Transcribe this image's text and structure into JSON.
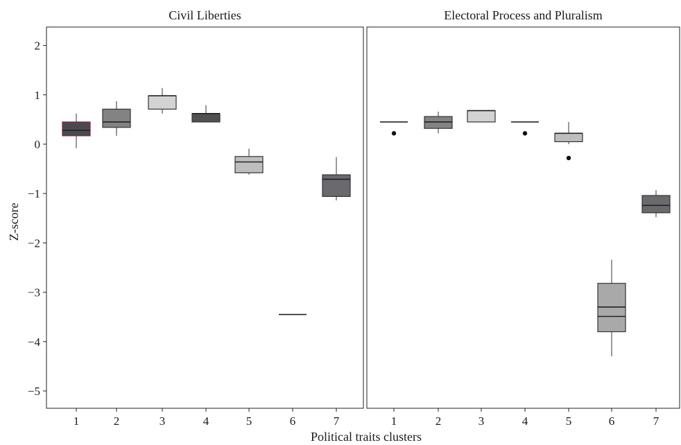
{
  "chart_data": {
    "type": "boxplot",
    "x_axis_title": "Political traits clusters",
    "y_axis_title": "Z-score",
    "x_categories": [
      "1",
      "2",
      "3",
      "4",
      "5",
      "6",
      "7"
    ],
    "y_ticks": [
      2,
      1,
      0,
      -1,
      -2,
      -3,
      -4,
      -5
    ],
    "y_tick_labels": [
      "2",
      "1",
      "0",
      "−1",
      "−2",
      "−3",
      "−4",
      "−5"
    ],
    "ylim": [
      -5.3,
      2.4
    ],
    "grid": false,
    "panels": [
      {
        "title": "Civil Liberties",
        "boxes": [
          {
            "cluster": "1",
            "min": -0.08,
            "q1": 0.17,
            "median": 0.28,
            "q3": 0.45,
            "max": 0.62,
            "outliers": [],
            "color": "#4a4a4e",
            "border": "#8b1c4b"
          },
          {
            "cluster": "2",
            "min": 0.17,
            "q1": 0.34,
            "median": 0.45,
            "q3": 0.71,
            "max": 0.87,
            "outliers": [],
            "color": "#838383",
            "border": "#333333"
          },
          {
            "cluster": "3",
            "min": 0.62,
            "q1": 0.71,
            "median": 0.98,
            "q3": 0.98,
            "max": 1.14,
            "outliers": [],
            "color": "#d3d3d3",
            "border": "#333333"
          },
          {
            "cluster": "4",
            "min": 0.45,
            "q1": 0.45,
            "median": 0.62,
            "q3": 0.62,
            "max": 0.79,
            "outliers": [],
            "color": "#515151",
            "border": "#333333"
          },
          {
            "cluster": "5",
            "min": -0.62,
            "q1": -0.58,
            "median": -0.36,
            "q3": -0.25,
            "max": -0.09,
            "outliers": [],
            "color": "#bebebe",
            "border": "#333333"
          },
          {
            "cluster": "6",
            "min": -3.45,
            "q1": -3.45,
            "median": -3.45,
            "q3": -3.45,
            "max": -3.45,
            "outliers": [],
            "color": "#a9a9a9",
            "border": "#333333"
          },
          {
            "cluster": "7",
            "min": -1.14,
            "q1": -1.06,
            "median": -0.71,
            "q3": -0.62,
            "max": -0.26,
            "outliers": [],
            "color": "#6a6a6e",
            "border": "#333333"
          }
        ]
      },
      {
        "title": "Electoral Process and Pluralism",
        "boxes": [
          {
            "cluster": "1",
            "min": 0.45,
            "q1": 0.45,
            "median": 0.45,
            "q3": 0.45,
            "max": 0.45,
            "outliers": [
              0.22
            ],
            "color": "#4a4a4e",
            "border": "#333333"
          },
          {
            "cluster": "2",
            "min": 0.22,
            "q1": 0.32,
            "median": 0.45,
            "q3": 0.56,
            "max": 0.66,
            "outliers": [],
            "color": "#838383",
            "border": "#333333"
          },
          {
            "cluster": "3",
            "min": 0.45,
            "q1": 0.45,
            "median": 0.68,
            "q3": 0.68,
            "max": 0.68,
            "outliers": [],
            "color": "#d3d3d3",
            "border": "#333333"
          },
          {
            "cluster": "4",
            "min": 0.45,
            "q1": 0.45,
            "median": 0.45,
            "q3": 0.45,
            "max": 0.45,
            "outliers": [
              0.22
            ],
            "color": "#515151",
            "border": "#333333"
          },
          {
            "cluster": "5",
            "min": 0.0,
            "q1": 0.05,
            "median": 0.22,
            "q3": 0.22,
            "max": 0.45,
            "outliers": [
              -0.28
            ],
            "color": "#bebebe",
            "border": "#333333"
          },
          {
            "cluster": "6",
            "min": -4.3,
            "q1": -3.8,
            "median": -3.3,
            "q3": -2.82,
            "max": -2.34,
            "outliers": [],
            "extra_line": -3.49,
            "color": "#a9a9a9",
            "border": "#333333"
          },
          {
            "cluster": "7",
            "min": -1.48,
            "q1": -1.39,
            "median": -1.24,
            "q3": -1.04,
            "max": -0.93,
            "outliers": [],
            "color": "#6a6a6e",
            "border": "#333333"
          }
        ]
      }
    ]
  }
}
